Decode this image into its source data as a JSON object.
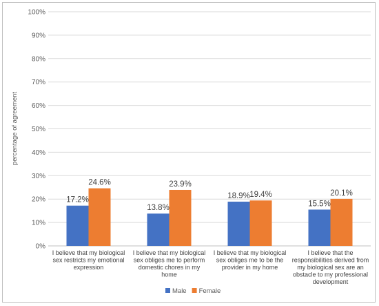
{
  "chart_data": {
    "type": "bar",
    "ylabel": "percentage of agreement",
    "ylim": [
      0,
      100
    ],
    "yticks": [
      "0%",
      "10%",
      "20%",
      "30%",
      "40%",
      "50%",
      "60%",
      "70%",
      "80%",
      "90%",
      "100%"
    ],
    "grid": true,
    "legend_position": "bottom",
    "categories": [
      [
        "I believe that my biological",
        "sex restricts my emotional",
        "expression"
      ],
      [
        "I believe that my biological",
        "sex obliges me to perform",
        "domestic chores in my",
        "home"
      ],
      [
        "I believe that my biological",
        "sex obliges me to be the",
        "provider in my home"
      ],
      [
        "I believe that the",
        "responsibilities derived from",
        "my biological sex are an",
        "obstacle to my professional",
        "development"
      ]
    ],
    "series": [
      {
        "name": "Male",
        "color": "#4472c4",
        "values": [
          17.2,
          13.8,
          18.9,
          15.5
        ],
        "labels": [
          "17.2%",
          "13.8%",
          "18.9%",
          "15.5%"
        ]
      },
      {
        "name": "Female",
        "color": "#ed7d31",
        "values": [
          24.6,
          23.9,
          19.4,
          20.1
        ],
        "labels": [
          "24.6%",
          "23.9%",
          "19.4%",
          "20.1%"
        ]
      }
    ]
  }
}
